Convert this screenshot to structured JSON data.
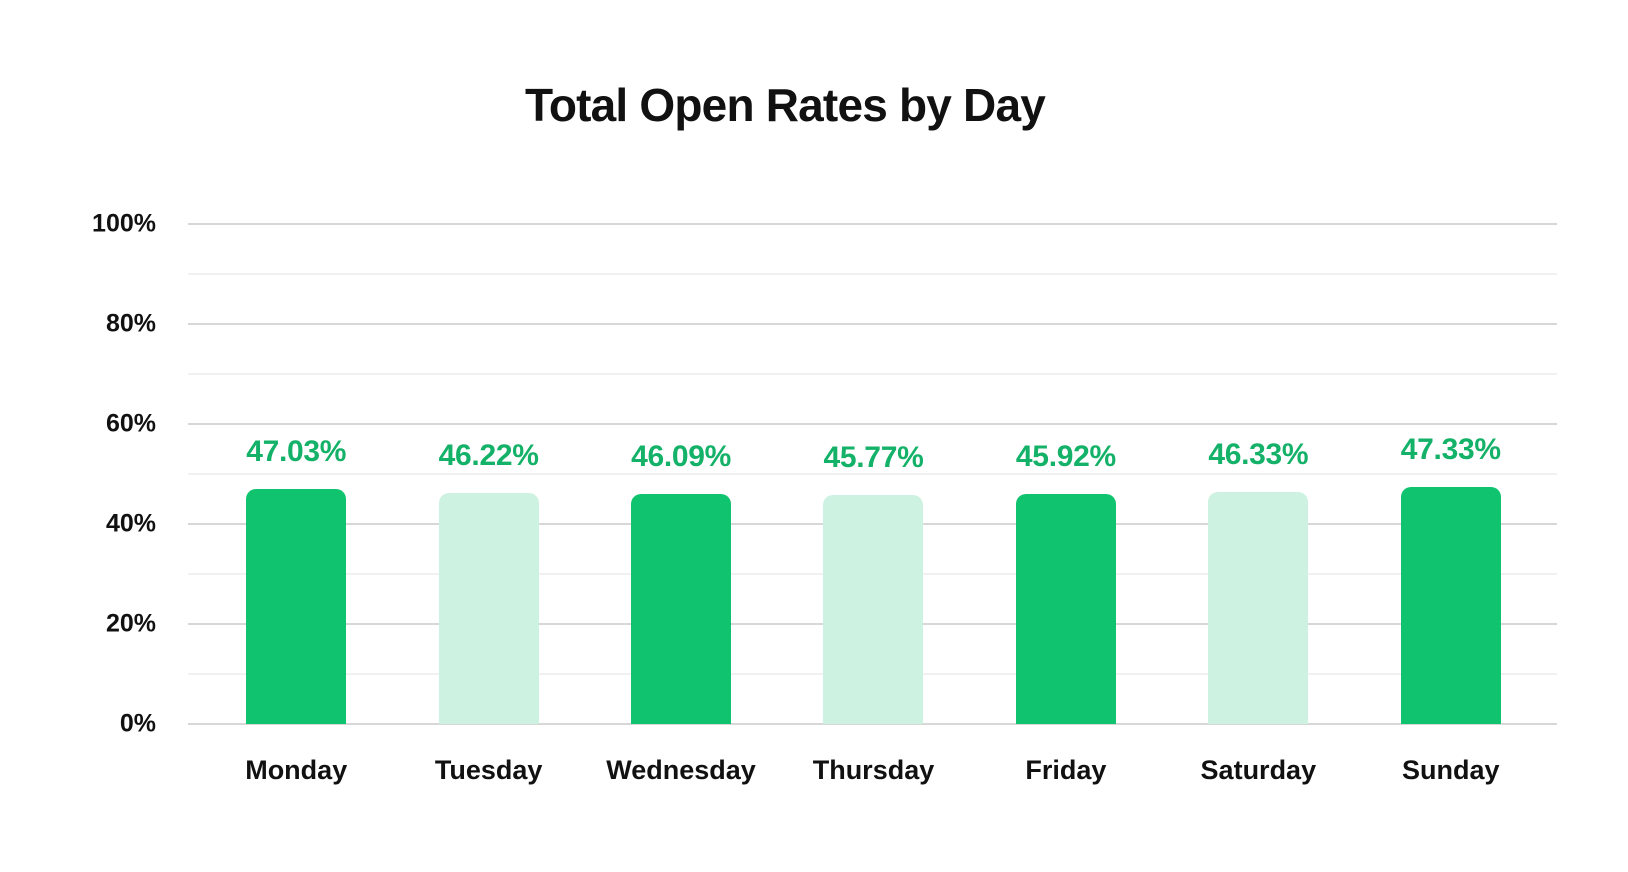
{
  "chart_data": {
    "type": "bar",
    "title": "Total Open Rates by Day",
    "categories": [
      "Monday",
      "Tuesday",
      "Wednesday",
      "Thursday",
      "Friday",
      "Saturday",
      "Sunday"
    ],
    "values": [
      47.03,
      46.22,
      46.09,
      45.77,
      45.92,
      46.33,
      47.33
    ],
    "value_labels": [
      "47.03%",
      "46.22%",
      "46.09%",
      "45.77%",
      "45.92%",
      "46.33%",
      "47.33%"
    ],
    "bar_styles": [
      "dark",
      "light",
      "dark",
      "light",
      "dark",
      "light",
      "dark"
    ],
    "xlabel": "",
    "ylabel": "",
    "ylim": [
      0,
      100
    ],
    "ytick_step_major": 20,
    "ytick_step_minor": 10,
    "ytick_labels": [
      "0%",
      "20%",
      "40%",
      "60%",
      "80%",
      "100%"
    ],
    "grid": "horizontal, major and minor lines, no vertical grid",
    "legend": "none",
    "colors": {
      "bar_dark": "#10C46F",
      "bar_light": "#CDF2E1",
      "value_label": "#14B169",
      "grid_major": "#D7D7D7",
      "grid_minor": "#F1F1F1",
      "axis_text": "#111111",
      "background": "#FFFFFF"
    }
  }
}
